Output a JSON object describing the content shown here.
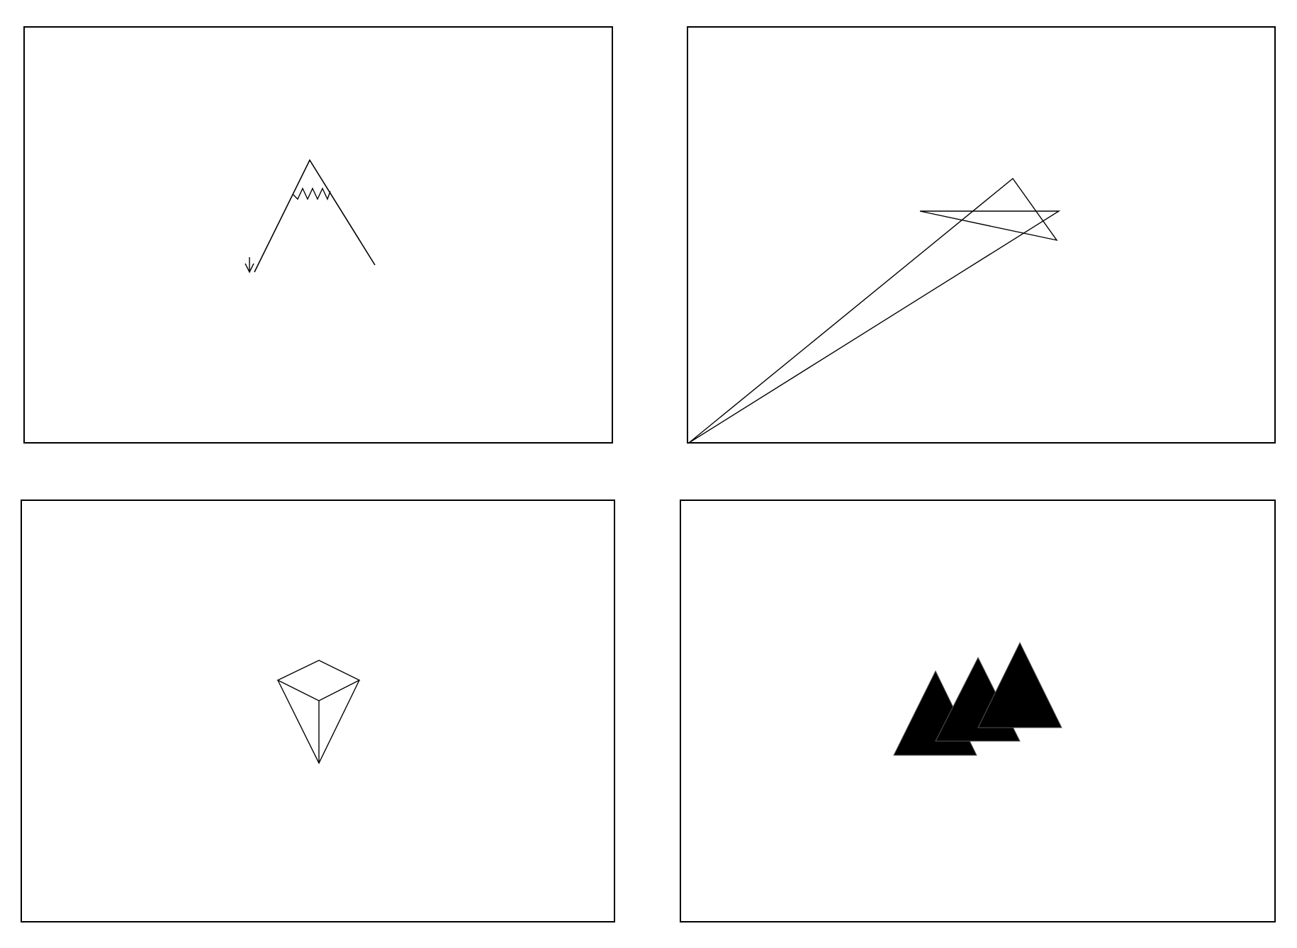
{
  "panels": [
    {
      "id": "sketch-mountain",
      "style": "outline"
    },
    {
      "id": "sketch-star-lines",
      "style": "outline"
    },
    {
      "id": "sketch-gem",
      "style": "outline"
    },
    {
      "id": "sketch-three-peaks",
      "style": "filled"
    }
  ],
  "colors": {
    "background": "#ffffff",
    "stroke": "#000000",
    "fill": "#000000"
  }
}
